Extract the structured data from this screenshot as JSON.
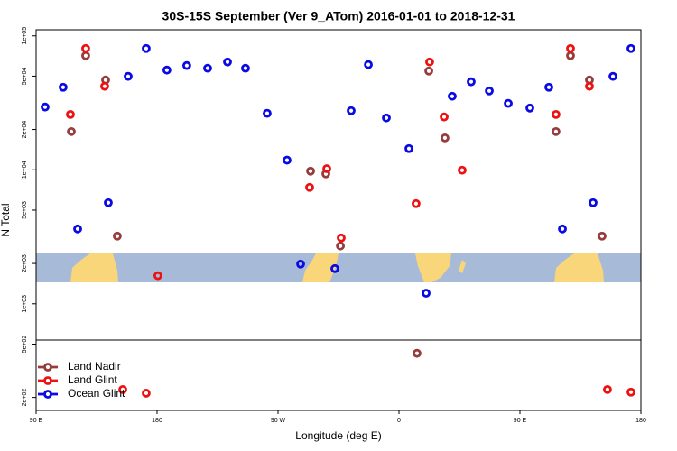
{
  "chart_data": {
    "type": "scatter",
    "title": "30S-15S September (Ver 9_ATom)   2016-01-01 to 2018-12-31",
    "x_label": "Longitude (deg E)",
    "y_label": "N Total",
    "log_y": true,
    "legend": "bottom-left",
    "xlim": [
      90,
      540
    ],
    "xticks": [
      {
        "value": 90,
        "label": "90 E"
      },
      {
        "value": 180,
        "label": "180"
      },
      {
        "value": 270,
        "label": "90 W"
      },
      {
        "value": 360,
        "label": "0"
      },
      {
        "value": 450,
        "label": "90 E"
      },
      {
        "value": 540,
        "label": "180"
      }
    ],
    "ylim": [
      160,
      111000
    ],
    "yticks": [
      {
        "value": 100000,
        "label": "1e+05"
      },
      {
        "value": 50000,
        "label": "5e+04"
      },
      {
        "value": 20000,
        "label": "2e+04"
      },
      {
        "value": 10000,
        "label": "1e+04"
      },
      {
        "value": 5000,
        "label": "5e+03"
      },
      {
        "value": 2000,
        "label": "2e+03"
      },
      {
        "value": 1000,
        "label": "1e+03"
      },
      {
        "value": 500,
        "label": "5e+02"
      },
      {
        "value": 200,
        "label": "2e+02"
      }
    ],
    "series": [
      {
        "name": "Land Nadir",
        "color": "#963c3c",
        "x": [
          116.2,
          126.9,
          141.7,
          150.4,
          294.2,
          305.6,
          316.4,
          373.4,
          382.2,
          394.2,
          476.8,
          487.6,
          501.7,
          511.1
        ],
        "values": [
          19300,
          71100,
          46800,
          3200,
          9770,
          9330,
          2700,
          427,
          54600,
          17300,
          19300,
          71100,
          46800,
          3200
        ]
      },
      {
        "name": "Land Glint",
        "color": "#ee1111",
        "x": [
          115.5,
          126.9,
          141.0,
          154.5,
          171.9,
          180.6,
          293.5,
          306.3,
          317.0,
          372.7,
          382.8,
          393.6,
          407.0,
          476.8,
          487.6,
          501.7,
          515.1,
          532.6
        ],
        "values": [
          25900,
          80500,
          42000,
          229,
          215,
          1620,
          7390,
          10200,
          3100,
          5590,
          63800,
          24800,
          9930,
          25900,
          80500,
          42000,
          229,
          219
        ]
      },
      {
        "name": "Ocean Glint",
        "color": "#0a0ae6",
        "x": [
          96.7,
          110.1,
          120.9,
          143.7,
          158.5,
          171.9,
          187.3,
          202.1,
          217.6,
          232.4,
          245.8,
          261.9,
          276.7,
          286.8,
          312.3,
          324.4,
          337.2,
          350.6,
          367.4,
          380.2,
          399.6,
          413.7,
          427.2,
          441.3,
          457.4,
          471.5,
          481.6,
          504.4,
          519.2,
          532.6
        ],
        "values": [
          29400,
          41300,
          3620,
          5680,
          49800,
          80500,
          55500,
          60000,
          57300,
          63800,
          57300,
          26400,
          11800,
          1980,
          1830,
          27600,
          61000,
          24400,
          14400,
          1200,
          35400,
          45400,
          38800,
          31300,
          28900,
          41300,
          3620,
          5680,
          49800,
          80500
        ]
      }
    ]
  }
}
